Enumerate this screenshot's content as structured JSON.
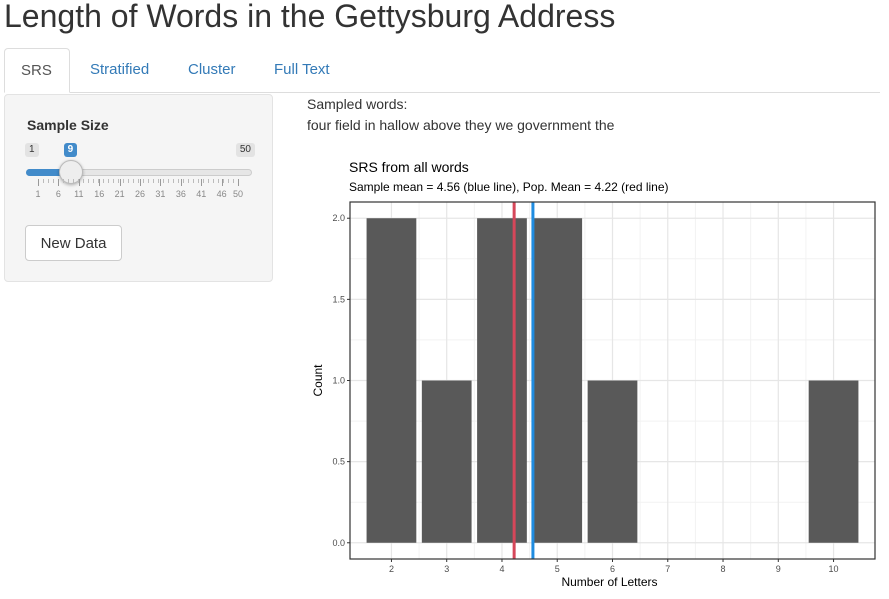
{
  "title": "Length of Words in the Gettysburg Address",
  "tabs": [
    {
      "label": "SRS",
      "active": true
    },
    {
      "label": "Stratified",
      "active": false
    },
    {
      "label": "Cluster",
      "active": false
    },
    {
      "label": "Full Text",
      "active": false
    }
  ],
  "sidebar": {
    "label": "Sample Size",
    "slider": {
      "min": 1,
      "max": 50,
      "value": 9,
      "min_label": "1",
      "max_label": "50",
      "value_label": "9",
      "grid_labels": [
        "1",
        "6",
        "11",
        "16",
        "21",
        "26",
        "31",
        "36",
        "41",
        "46",
        "50"
      ],
      "accent": "#428bca"
    },
    "button_label": "New Data"
  },
  "main": {
    "sampled_label": "Sampled words:",
    "sampled_words": "four field in hallow above they we government the"
  },
  "chart_data": {
    "type": "bar",
    "title": "SRS from all words",
    "subtitle": "Sample mean = 4.56 (blue line), Pop. Mean = 4.22 (red line)",
    "xlabel": "Number of Letters",
    "ylabel": "Count",
    "x_ticks": [
      2,
      3,
      4,
      5,
      6,
      7,
      8,
      9,
      10
    ],
    "x": [
      2,
      3,
      4,
      5,
      6,
      10
    ],
    "values": [
      2,
      1,
      2,
      2,
      1,
      1
    ],
    "ylim": [
      0,
      2
    ],
    "y_ticks": [
      "0.0",
      "0.5",
      "1.0",
      "1.5",
      "2.0"
    ],
    "sample_mean": 4.56,
    "pop_mean": 4.22,
    "bar_color": "#595959",
    "sample_mean_color": "#1f8ce0",
    "pop_mean_color": "#d6475a",
    "grid": true
  }
}
